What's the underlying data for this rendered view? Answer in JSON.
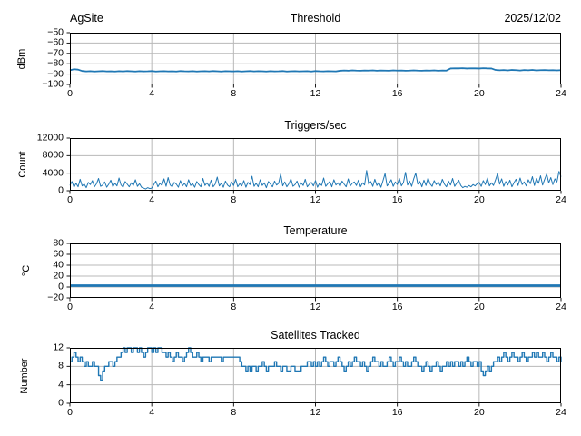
{
  "figure": {
    "background": "#ffffff",
    "line_color": "#1f77b4",
    "grid_color": "#b8b8b8",
    "spine_color": "#000000",
    "text_color": "#000000"
  },
  "chart_data": [
    {
      "type": "line",
      "title": "Threshold",
      "title_left": "AgSite",
      "title_right": "2025/12/02",
      "ylabel": "dBm",
      "xlabel": "",
      "xlim": [
        0,
        24
      ],
      "ylim": [
        -100,
        -50
      ],
      "xticks": [
        0,
        4,
        8,
        12,
        16,
        20,
        24
      ],
      "yticks": [
        -50,
        -60,
        -70,
        -80,
        -90,
        -100
      ],
      "grid": true,
      "legend": "none",
      "line_width": 1.8,
      "step": false,
      "x_start": 0,
      "x_end": 24,
      "values": [
        -86.3,
        -85.3,
        -85.7,
        -87.0,
        -87.4,
        -87.2,
        -87.5,
        -87.3,
        -87.1,
        -87.4,
        -87.3,
        -87.5,
        -87.2,
        -87.4,
        -87.1,
        -87.3,
        -87.5,
        -87.2,
        -87.4,
        -87.3,
        -87.1,
        -87.5,
        -87.3,
        -87.2,
        -87.4,
        -87.3,
        -87.5,
        -87.1,
        -87.3,
        -87.4,
        -87.2,
        -87.5,
        -87.3,
        -87.2,
        -87.4,
        -87.1,
        -87.3,
        -87.5,
        -87.2,
        -87.3,
        -87.4,
        -87.2,
        -87.5,
        -87.3,
        -87.1,
        -87.4,
        -87.2,
        -87.3,
        -87.5,
        -87.2,
        -87.4,
        -87.3,
        -87.1,
        -87.5,
        -87.3,
        -87.2,
        -87.4,
        -87.3,
        -87.2,
        -87.5,
        -87.1,
        -87.3,
        -87.4,
        -87.2,
        -87.3,
        -87.4,
        -86.8,
        -86.5,
        -86.7,
        -86.4,
        -86.6,
        -86.7,
        -86.5,
        -86.6,
        -86.4,
        -86.7,
        -86.5,
        -86.6,
        -86.7,
        -86.4,
        -86.6,
        -86.5,
        -86.7,
        -86.6,
        -86.4,
        -86.6,
        -86.7,
        -86.5,
        -86.6,
        -86.4,
        -86.7,
        -86.5,
        -86.6,
        -84.6,
        -84.4,
        -84.5,
        -84.3,
        -84.6,
        -84.4,
        -84.5,
        -84.6,
        -84.3,
        -84.5,
        -84.6,
        -86.0,
        -86.3,
        -86.1,
        -86.4,
        -86.0,
        -86.2,
        -86.5,
        -86.1,
        -86.3,
        -86.0,
        -86.4,
        -86.2,
        -86.1,
        -86.3,
        -86.2,
        -86.4,
        -86.2
      ]
    },
    {
      "type": "line",
      "title": "Triggers/sec",
      "ylabel": "Count",
      "xlabel": "",
      "xlim": [
        0,
        24
      ],
      "ylim": [
        0,
        12000
      ],
      "xticks": [
        0,
        4,
        8,
        12,
        16,
        20,
        24
      ],
      "yticks": [
        0,
        4000,
        8000,
        12000
      ],
      "grid": true,
      "legend": "none",
      "line_width": 1.0,
      "step": false,
      "x_start": 0,
      "x_end": 24,
      "values": [
        1200,
        2100,
        800,
        1700,
        900,
        2600,
        1100,
        1500,
        700,
        1900,
        1400,
        2300,
        900,
        1600,
        2800,
        1000,
        1300,
        2000,
        800,
        1500,
        2400,
        900,
        1700,
        1100,
        2900,
        1300,
        800,
        2100,
        1500,
        900,
        1800,
        1200,
        2500,
        1000,
        1600,
        800,
        600,
        400,
        700,
        500,
        600,
        1400,
        2200,
        900,
        1700,
        1200,
        2700,
        1000,
        3000,
        1300,
        900,
        1900,
        1500,
        800,
        2300,
        1100,
        1700,
        900,
        2500,
        1200,
        1600,
        800,
        2100,
        1400,
        900,
        2800,
        1200,
        1800,
        1000,
        2400,
        900,
        1500,
        3100,
        1100,
        1700,
        800,
        2200,
        1300,
        900,
        2000,
        1200,
        2600,
        900,
        1600,
        1100,
        2300,
        800,
        1900,
        1400,
        3300,
        1000,
        1700,
        900,
        2500,
        1200,
        1800,
        700,
        2100,
        1500,
        900,
        2200,
        1300,
        1700,
        3800,
        1100,
        2000,
        900,
        1600,
        2700,
        1000,
        1400,
        2200,
        800,
        1800,
        1200,
        2600,
        900,
        1500,
        1900,
        1100,
        2300,
        800,
        1700,
        1200,
        2900,
        1000,
        1600,
        2100,
        900,
        2500,
        1300,
        1800,
        1000,
        2200,
        1500,
        900,
        2700,
        1100,
        1700,
        2000,
        1200,
        2400,
        900,
        1800,
        1300,
        4600,
        1500,
        2100,
        1000,
        2600,
        1200,
        1900,
        800,
        2300,
        3900,
        1100,
        1700,
        2500,
        1000,
        2000,
        1400,
        2800,
        1100,
        1900,
        4200,
        1300,
        2200,
        1000,
        2700,
        4000,
        1500,
        2100,
        900,
        2400,
        1200,
        2900,
        1600,
        1000,
        2300,
        1400,
        2000,
        1100,
        2600,
        1500,
        900,
        2200,
        1300,
        2800,
        1000,
        1700,
        2400,
        1200,
        700,
        1000,
        800,
        1200,
        900,
        1400,
        1100,
        1600,
        1900,
        1000,
        2300,
        1400,
        2900,
        1100,
        1800,
        1200,
        2500,
        3900,
        1500,
        2700,
        1000,
        2100,
        1300,
        2400,
        900,
        1800,
        2600,
        1200,
        2900,
        1400,
        2000,
        1100,
        2500,
        1600,
        3200,
        1200,
        2800,
        1700,
        3400,
        1300,
        2600,
        3800,
        1800,
        3000,
        1400,
        2700,
        2000,
        4400,
        3200
      ]
    },
    {
      "type": "line",
      "title": "Temperature",
      "ylabel": "°C",
      "xlabel": "",
      "xlim": [
        0,
        24
      ],
      "ylim": [
        -20,
        80
      ],
      "xticks": [
        0,
        4,
        8,
        12,
        16,
        20,
        24
      ],
      "yticks": [
        -20,
        0,
        20,
        40,
        60,
        80
      ],
      "grid": true,
      "legend": "none",
      "line_width": 2.8,
      "step": false,
      "x_start": 0,
      "x_end": 24,
      "values": [
        2.5,
        2.5
      ]
    },
    {
      "type": "line",
      "title": "Satellites Tracked",
      "ylabel": "Number",
      "xlabel": "",
      "xlim": [
        0,
        24
      ],
      "ylim": [
        0,
        12
      ],
      "xticks": [
        0,
        4,
        8,
        12,
        16,
        20,
        24
      ],
      "yticks": [
        0,
        4,
        8,
        12
      ],
      "grid": true,
      "legend": "none",
      "line_width": 1.4,
      "step": true,
      "x_start": 0,
      "x_end": 24,
      "values": [
        9,
        10,
        11,
        10,
        9,
        10,
        9,
        8,
        9,
        8,
        8,
        9,
        8,
        8,
        6,
        5,
        7,
        8,
        8,
        9,
        9,
        8,
        9,
        10,
        10,
        11,
        12,
        11,
        12,
        12,
        11,
        12,
        12,
        11,
        12,
        11,
        10,
        11,
        12,
        12,
        11,
        12,
        11,
        12,
        12,
        11,
        11,
        10,
        11,
        10,
        9,
        10,
        11,
        10,
        10,
        9,
        10,
        11,
        12,
        11,
        10,
        10,
        11,
        10,
        9,
        10,
        10,
        10,
        9,
        10,
        10,
        10,
        10,
        10,
        9,
        10,
        10,
        10,
        10,
        10,
        10,
        10,
        10,
        9,
        8,
        8,
        7,
        8,
        7,
        8,
        8,
        7,
        8,
        8,
        9,
        8,
        7,
        8,
        8,
        8,
        9,
        8,
        8,
        7,
        8,
        8,
        7,
        7,
        8,
        8,
        7,
        7,
        7,
        8,
        8,
        8,
        9,
        9,
        8,
        9,
        8,
        9,
        8,
        9,
        10,
        9,
        8,
        9,
        9,
        8,
        9,
        10,
        9,
        8,
        7,
        8,
        9,
        8,
        9,
        10,
        9,
        9,
        8,
        9,
        8,
        7,
        8,
        9,
        10,
        9,
        9,
        8,
        9,
        8,
        8,
        9,
        10,
        9,
        8,
        9,
        9,
        10,
        9,
        8,
        9,
        8,
        8,
        9,
        10,
        9,
        8,
        8,
        7,
        8,
        9,
        8,
        7,
        8,
        8,
        9,
        8,
        7,
        8,
        8,
        9,
        8,
        9,
        8,
        9,
        9,
        8,
        9,
        8,
        9,
        10,
        9,
        8,
        9,
        9,
        8,
        9,
        7,
        6,
        7,
        8,
        7,
        8,
        9,
        9,
        10,
        9,
        10,
        11,
        10,
        9,
        10,
        11,
        10,
        10,
        9,
        10,
        11,
        10,
        9,
        10,
        10,
        11,
        10,
        11,
        10,
        10,
        11,
        10,
        9,
        10,
        11,
        10,
        10,
        9,
        10,
        9
      ]
    }
  ]
}
